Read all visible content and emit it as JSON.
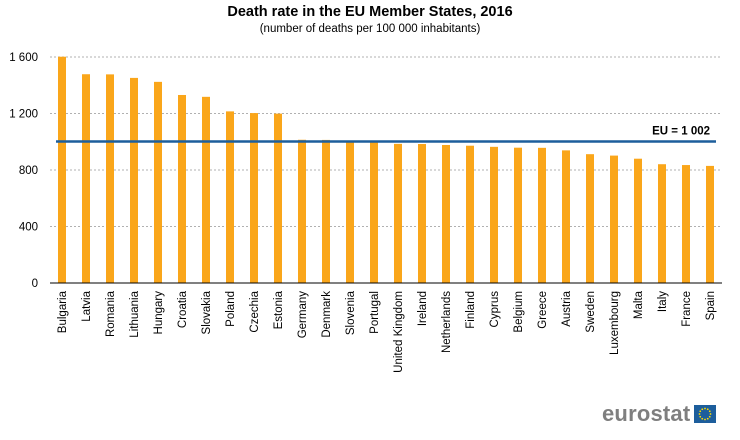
{
  "chart_data": {
    "type": "bar",
    "title": "Death rate in the EU Member States, 2016",
    "subtitle": "(number of deaths per 100 000 inhabitants)",
    "xlabel": "",
    "ylabel": "",
    "ylim": [
      0,
      1600
    ],
    "yticks": [
      0,
      400,
      800,
      1200,
      1600
    ],
    "ytick_labels": [
      "0",
      "400",
      "800",
      "1 200",
      "1 600"
    ],
    "grid": true,
    "categories": [
      "Bulgaria",
      "Latvia",
      "Romania",
      "Lithuania",
      "Hungary",
      "Croatia",
      "Slovakia",
      "Poland",
      "Czechia",
      "Estonia",
      "Germany",
      "Denmark",
      "Slovenia",
      "Portugal",
      "United Kingdom",
      "Ireland",
      "Netherlands",
      "Finland",
      "Cyprus",
      "Belgium",
      "Greece",
      "Austria",
      "Sweden",
      "Luxembourg",
      "Malta",
      "Italy",
      "France",
      "Spain"
    ],
    "values": [
      1602,
      1478,
      1477,
      1452,
      1424,
      1331,
      1318,
      1215,
      1203,
      1199,
      1014,
      1013,
      999,
      996,
      985,
      984,
      977,
      972,
      964,
      958,
      957,
      939,
      912,
      902,
      880,
      841,
      835,
      829
    ],
    "reference_line": {
      "label": "EU = 1 002",
      "value": 1002
    },
    "colors": {
      "bar": "#faa61a",
      "reference_line": "#1d5e9c",
      "grid": "#b0b0b0",
      "axis": "#000000"
    }
  },
  "logo": {
    "text": "eurostat"
  }
}
